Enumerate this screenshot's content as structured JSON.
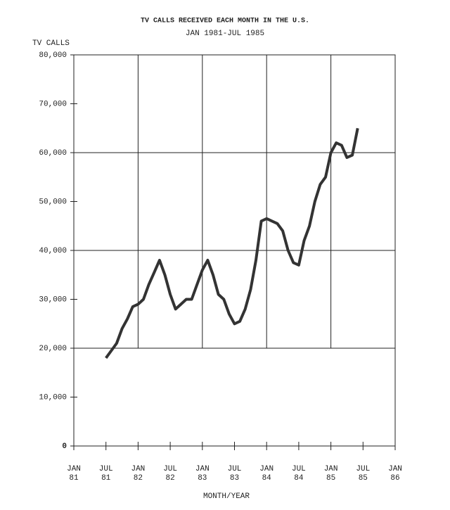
{
  "chart_data": {
    "type": "line",
    "title": "TV CALLS RECEIVED EACH MONTH IN THE U.S.",
    "subtitle": "JAN 1981-JUL 1985",
    "y_label": "TV CALLS",
    "x_label": "MONTH/YEAR",
    "categories": [
      "JAN 81",
      null,
      null,
      null,
      null,
      null,
      "JUL 81",
      null,
      null,
      null,
      null,
      null,
      "JAN 82",
      null,
      null,
      null,
      null,
      null,
      "JUL 82",
      null,
      null,
      null,
      null,
      null,
      "JAN 83",
      null,
      null,
      null,
      null,
      null,
      "JUL 83",
      null,
      null,
      null,
      null,
      null,
      "JAN 84",
      null,
      null,
      null,
      null,
      null,
      "JUL 84",
      null,
      null,
      null,
      null,
      null,
      "JAN 85",
      null,
      null,
      null,
      null,
      null,
      "JUL 85",
      null,
      null,
      null,
      null,
      null,
      "JAN 86"
    ],
    "series": [
      {
        "name": "TV CALLS",
        "color": "#333333",
        "values": [
          null,
          null,
          null,
          null,
          null,
          null,
          18000,
          19500,
          21000,
          24000,
          26000,
          28500,
          29000,
          30000,
          33000,
          35500,
          38000,
          35000,
          31000,
          28000,
          29000,
          30000,
          30000,
          33000,
          36000,
          38000,
          35000,
          31000,
          30000,
          27000,
          25000,
          25500,
          28000,
          32000,
          38000,
          46000,
          46500,
          46000,
          45500,
          44000,
          40000,
          37500,
          37000,
          42000,
          45000,
          50000,
          53500,
          55000,
          60000,
          62000,
          61500,
          59000,
          59500,
          65000,
          null,
          null,
          null,
          null,
          null,
          null,
          null
        ]
      }
    ],
    "ylim": [
      0,
      80000
    ],
    "yticks": [
      0,
      {
        "value": 10000,
        "label": "10,000"
      },
      {
        "value": 20000,
        "label": "20,000"
      },
      {
        "value": 30000,
        "label": "30,000"
      },
      {
        "value": 40000,
        "label": "40,000"
      },
      {
        "value": 50000,
        "label": "50,000"
      },
      {
        "value": 60000,
        "label": "60,000"
      },
      {
        "value": 70000,
        "label": "70,000"
      },
      {
        "value": 80000,
        "label": "80,000"
      }
    ],
    "grid_yticks": [
      20000,
      40000,
      60000
    ],
    "grid": true
  }
}
